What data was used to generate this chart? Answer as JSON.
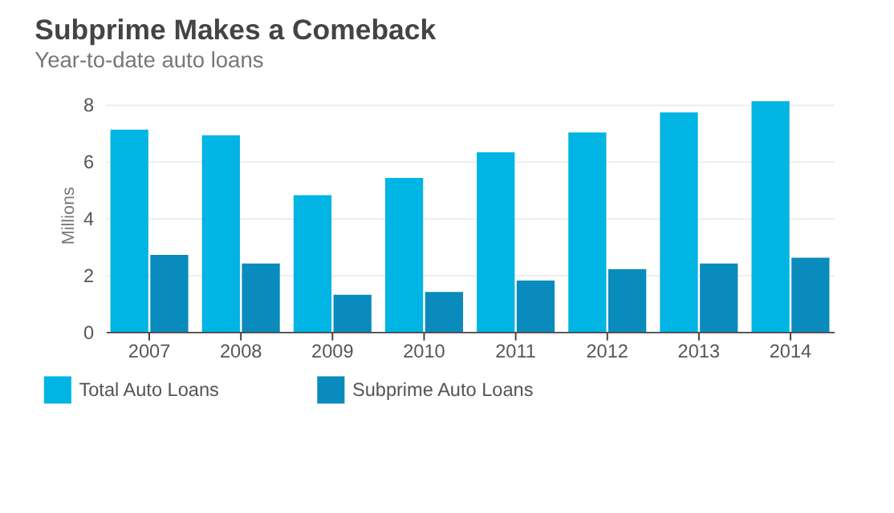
{
  "chart_data": {
    "type": "bar",
    "title": "Subprime Makes a Comeback",
    "subtitle": "Year-to-date auto loans",
    "ylabel": "Millions",
    "categories": [
      "2007",
      "2008",
      "2009",
      "2010",
      "2011",
      "2012",
      "2013",
      "2014"
    ],
    "series": [
      {
        "name": "Total Auto Loans",
        "color": "#00b4e3",
        "values": [
          7.1,
          6.9,
          4.8,
          5.4,
          6.3,
          7.0,
          7.7,
          8.1
        ]
      },
      {
        "name": "Subprime Auto Loans",
        "color": "#0a8bbd",
        "values": [
          2.7,
          2.4,
          1.3,
          1.4,
          1.8,
          2.2,
          2.4,
          2.6
        ]
      }
    ],
    "ylim": [
      0,
      8.2
    ],
    "yticks": [
      0,
      2,
      4,
      6,
      8
    ],
    "grid": "y",
    "legend": "bottom left"
  }
}
